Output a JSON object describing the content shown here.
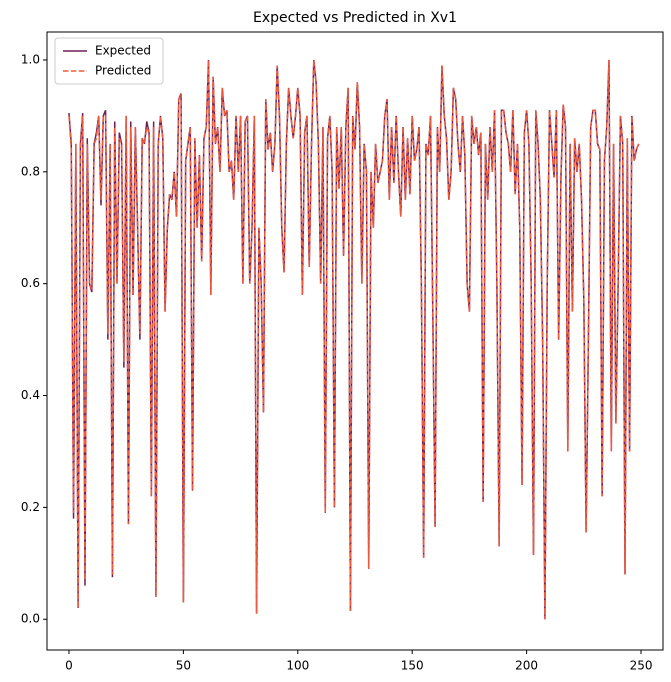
{
  "chart_data": {
    "type": "line",
    "title": "Expected vs Predicted in Xv1",
    "x": [
      0,
      1,
      2,
      3,
      4,
      5,
      6,
      7,
      8,
      9,
      10,
      11,
      12,
      13,
      14,
      15,
      16,
      17,
      18,
      19,
      20,
      21,
      22,
      23,
      24,
      25,
      26,
      27,
      28,
      29,
      30,
      31,
      32,
      33,
      34,
      35,
      36,
      37,
      38,
      39,
      40,
      41,
      42,
      43,
      44,
      45,
      46,
      47,
      48,
      49,
      50,
      51,
      52,
      53,
      54,
      55,
      56,
      57,
      58,
      59,
      60,
      61,
      62,
      63,
      64,
      65,
      66,
      67,
      68,
      69,
      70,
      71,
      72,
      73,
      74,
      75,
      76,
      77,
      78,
      79,
      80,
      81,
      82,
      83,
      84,
      85,
      86,
      87,
      88,
      89,
      90,
      91,
      92,
      93,
      94,
      95,
      96,
      97,
      98,
      99,
      100,
      101,
      102,
      103,
      104,
      105,
      106,
      107,
      108,
      109,
      110,
      111,
      112,
      113,
      114,
      115,
      116,
      117,
      118,
      119,
      120,
      121,
      122,
      123,
      124,
      125,
      126,
      127,
      128,
      129,
      130,
      131,
      132,
      133,
      134,
      135,
      136,
      137,
      138,
      139,
      140,
      141,
      142,
      143,
      144,
      145,
      146,
      147,
      148,
      149,
      150,
      151,
      152,
      153,
      154,
      155,
      156,
      157,
      158,
      159,
      160,
      161,
      162,
      163,
      164,
      165,
      166,
      167,
      168,
      169,
      170,
      171,
      172,
      173,
      174,
      175,
      176,
      177,
      178,
      179,
      180,
      181,
      182,
      183,
      184,
      185,
      186,
      187,
      188,
      189,
      190,
      191,
      192,
      193,
      194,
      195,
      196,
      197,
      198,
      199,
      200,
      201,
      202,
      203,
      204,
      205,
      206,
      207,
      208,
      209,
      210,
      211,
      212,
      213,
      214,
      215,
      216,
      217,
      218,
      219,
      220,
      221,
      222,
      223,
      224,
      225,
      226,
      227,
      228,
      229,
      230,
      231,
      232,
      233,
      234,
      235,
      236,
      237,
      238,
      239,
      240,
      241,
      242,
      243,
      244,
      245,
      246,
      247,
      248,
      249
    ],
    "series": [
      {
        "name": "Expected",
        "color": "#701f57",
        "dashed": false,
        "values": [
          0.905,
          0.85,
          0.18,
          0.85,
          0.02,
          0.85,
          0.905,
          0.06,
          0.86,
          0.6,
          0.585,
          0.85,
          0.87,
          0.9,
          0.74,
          0.9,
          0.91,
          0.5,
          0.85,
          0.075,
          0.89,
          0.6,
          0.87,
          0.85,
          0.45,
          0.9,
          0.17,
          0.89,
          0.58,
          0.88,
          0.7,
          0.5,
          0.86,
          0.85,
          0.89,
          0.87,
          0.22,
          0.89,
          0.04,
          0.85,
          0.9,
          0.86,
          0.55,
          0.7,
          0.76,
          0.75,
          0.8,
          0.72,
          0.93,
          0.94,
          0.03,
          0.82,
          0.85,
          0.88,
          0.23,
          0.86,
          0.7,
          0.83,
          0.64,
          0.86,
          0.88,
          1.0,
          0.58,
          0.97,
          0.85,
          0.88,
          0.8,
          0.95,
          0.9,
          0.91,
          0.8,
          0.82,
          0.75,
          0.9,
          0.8,
          0.9,
          0.6,
          0.89,
          0.9,
          0.6,
          0.7,
          0.9,
          0.01,
          0.7,
          0.6,
          0.37,
          0.93,
          0.84,
          0.87,
          0.8,
          0.85,
          0.99,
          0.9,
          0.7,
          0.62,
          0.85,
          0.95,
          0.9,
          0.86,
          0.9,
          0.95,
          0.9,
          0.58,
          0.87,
          0.9,
          0.63,
          0.85,
          1.0,
          0.96,
          0.85,
          0.6,
          0.88,
          0.19,
          0.86,
          0.9,
          0.8,
          0.2,
          0.88,
          0.77,
          0.88,
          0.65,
          0.88,
          0.95,
          0.015,
          0.9,
          0.84,
          0.96,
          0.88,
          0.6,
          0.85,
          0.8,
          0.09,
          0.8,
          0.7,
          0.85,
          0.78,
          0.8,
          0.82,
          0.9,
          0.93,
          0.75,
          0.88,
          0.78,
          0.9,
          0.8,
          0.72,
          0.88,
          0.75,
          0.86,
          0.76,
          0.9,
          0.82,
          0.84,
          0.88,
          0.6,
          0.11,
          0.85,
          0.83,
          0.9,
          0.55,
          0.165,
          0.88,
          0.8,
          0.99,
          0.9,
          0.86,
          0.75,
          0.8,
          0.95,
          0.93,
          0.85,
          0.8,
          0.9,
          0.83,
          0.6,
          0.55,
          0.9,
          0.85,
          0.88,
          0.83,
          0.87,
          0.21,
          0.85,
          0.75,
          0.88,
          0.8,
          0.91,
          0.6,
          0.13,
          0.91,
          0.91,
          0.87,
          0.85,
          0.8,
          0.91,
          0.76,
          0.85,
          0.7,
          0.24,
          0.87,
          0.91,
          0.85,
          0.6,
          0.115,
          0.91,
          0.85,
          0.75,
          0.5,
          0.0,
          0.6,
          0.91,
          0.85,
          0.79,
          0.91,
          0.5,
          0.79,
          0.92,
          0.88,
          0.3,
          0.85,
          0.55,
          0.86,
          0.8,
          0.85,
          0.75,
          0.57,
          0.155,
          0.5,
          0.88,
          0.91,
          0.91,
          0.85,
          0.84,
          0.22,
          0.82,
          0.88,
          1.0,
          0.3,
          0.85,
          0.35,
          0.6,
          0.9,
          0.85,
          0.08,
          0.86,
          0.3,
          0.9,
          0.82,
          0.84,
          0.85
        ]
      },
      {
        "name": "Predicted",
        "color": "#f05a3c",
        "dashed": true,
        "values": [
          0.9,
          0.84,
          0.19,
          0.85,
          0.02,
          0.84,
          0.9,
          0.07,
          0.85,
          0.6,
          0.59,
          0.85,
          0.86,
          0.9,
          0.75,
          0.9,
          0.9,
          0.51,
          0.85,
          0.08,
          0.88,
          0.6,
          0.86,
          0.85,
          0.46,
          0.9,
          0.17,
          0.88,
          0.58,
          0.88,
          0.7,
          0.51,
          0.86,
          0.85,
          0.88,
          0.87,
          0.22,
          0.88,
          0.04,
          0.85,
          0.9,
          0.86,
          0.55,
          0.7,
          0.76,
          0.75,
          0.8,
          0.72,
          0.93,
          0.94,
          0.03,
          0.82,
          0.85,
          0.88,
          0.23,
          0.86,
          0.7,
          0.83,
          0.64,
          0.86,
          0.88,
          1.0,
          0.58,
          0.97,
          0.85,
          0.88,
          0.8,
          0.95,
          0.9,
          0.91,
          0.8,
          0.82,
          0.75,
          0.9,
          0.8,
          0.9,
          0.6,
          0.89,
          0.9,
          0.6,
          0.7,
          0.9,
          0.01,
          0.7,
          0.6,
          0.37,
          0.93,
          0.84,
          0.87,
          0.8,
          0.85,
          0.99,
          0.9,
          0.7,
          0.62,
          0.85,
          0.95,
          0.9,
          0.86,
          0.9,
          0.95,
          0.9,
          0.58,
          0.87,
          0.9,
          0.63,
          0.85,
          1.0,
          0.96,
          0.85,
          0.6,
          0.88,
          0.19,
          0.86,
          0.9,
          0.8,
          0.2,
          0.88,
          0.77,
          0.88,
          0.65,
          0.88,
          0.95,
          0.015,
          0.9,
          0.84,
          0.96,
          0.88,
          0.6,
          0.85,
          0.8,
          0.09,
          0.8,
          0.7,
          0.85,
          0.78,
          0.8,
          0.82,
          0.9,
          0.93,
          0.75,
          0.88,
          0.78,
          0.9,
          0.8,
          0.72,
          0.88,
          0.75,
          0.86,
          0.76,
          0.9,
          0.82,
          0.84,
          0.88,
          0.6,
          0.11,
          0.85,
          0.83,
          0.9,
          0.55,
          0.165,
          0.88,
          0.8,
          0.99,
          0.9,
          0.86,
          0.75,
          0.8,
          0.95,
          0.93,
          0.85,
          0.8,
          0.9,
          0.83,
          0.6,
          0.55,
          0.9,
          0.85,
          0.88,
          0.83,
          0.87,
          0.21,
          0.85,
          0.75,
          0.88,
          0.8,
          0.91,
          0.6,
          0.13,
          0.91,
          0.91,
          0.87,
          0.85,
          0.8,
          0.91,
          0.76,
          0.85,
          0.7,
          0.24,
          0.87,
          0.91,
          0.85,
          0.6,
          0.115,
          0.91,
          0.85,
          0.75,
          0.5,
          0.0,
          0.6,
          0.91,
          0.85,
          0.79,
          0.91,
          0.5,
          0.79,
          0.92,
          0.88,
          0.3,
          0.85,
          0.55,
          0.86,
          0.8,
          0.85,
          0.75,
          0.57,
          0.155,
          0.5,
          0.88,
          0.91,
          0.91,
          0.85,
          0.84,
          0.22,
          0.82,
          0.88,
          1.0,
          0.3,
          0.85,
          0.35,
          0.6,
          0.9,
          0.85,
          0.08,
          0.86,
          0.3,
          0.9,
          0.82,
          0.84,
          0.85
        ]
      }
    ],
    "xlim": [
      -9.6,
      259.6
    ],
    "xticks": [
      0,
      50,
      100,
      150,
      200,
      250
    ],
    "ylim": [
      -0.055,
      1.05
    ],
    "yticks": [
      {
        "value": 0,
        "label": "0.0"
      },
      {
        "value": 0.2,
        "label": "0.2"
      },
      {
        "value": 0.4,
        "label": "0.4"
      },
      {
        "value": 0.6,
        "label": "0.6"
      },
      {
        "value": 0.8,
        "label": "0.8"
      },
      {
        "value": 1,
        "label": "1.0"
      }
    ],
    "grid": false,
    "legend": "upper-left"
  }
}
